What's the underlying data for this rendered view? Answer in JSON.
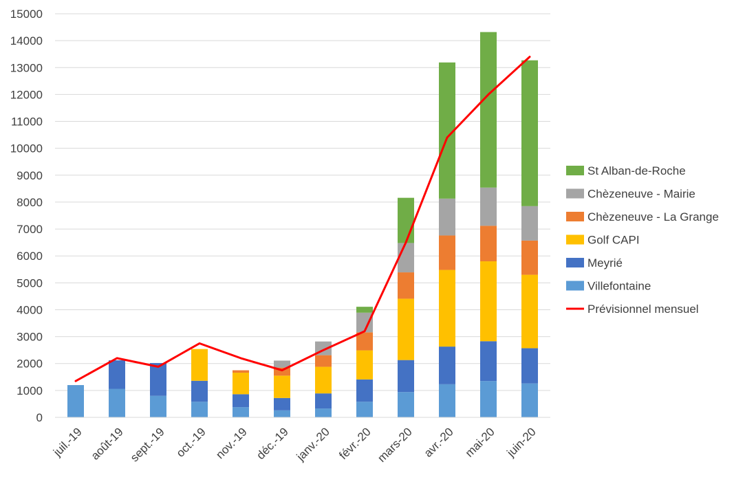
{
  "chart_data": {
    "type": "bar",
    "stacked": true,
    "title": "",
    "xlabel": "",
    "ylabel": "",
    "ylim": [
      0,
      15000
    ],
    "yticks": [
      0,
      1000,
      2000,
      3000,
      4000,
      5000,
      6000,
      7000,
      8000,
      9000,
      10000,
      11000,
      12000,
      13000,
      14000,
      15000
    ],
    "grid": true,
    "legend_position": "right",
    "categories": [
      "juil.-19",
      "août-19",
      "sept.-19",
      "oct.-19",
      "nov.-19",
      "déc.-19",
      "janv.-20",
      "févr.-20",
      "mars-20",
      "avr.-20",
      "mai-20",
      "juin-20"
    ],
    "series": [
      {
        "name": "Villefontaine",
        "color": "#5B9BD5",
        "values": [
          1200,
          1060,
          800,
          580,
          380,
          260,
          330,
          580,
          940,
          1230,
          1350,
          1260
        ]
      },
      {
        "name": "Meyrié",
        "color": "#4472C4",
        "values": [
          0,
          1060,
          1220,
          780,
          480,
          460,
          560,
          830,
          1190,
          1400,
          1480,
          1310
        ]
      },
      {
        "name": "Golf CAPI",
        "color": "#FFC000",
        "values": [
          0,
          0,
          0,
          1180,
          800,
          830,
          990,
          1080,
          2280,
          2850,
          2970,
          2730
        ]
      },
      {
        "name": "Chèzeneuve - La Grange",
        "color": "#ED7D31",
        "values": [
          0,
          0,
          0,
          0,
          90,
          300,
          430,
          670,
          980,
          1280,
          1320,
          1270
        ]
      },
      {
        "name": "Chèzeneuve - Mairie",
        "color": "#A5A5A5",
        "values": [
          0,
          0,
          0,
          0,
          0,
          260,
          510,
          730,
          1090,
          1370,
          1420,
          1280
        ]
      },
      {
        "name": "St Alban-de-Roche",
        "color": "#70AD47",
        "values": [
          0,
          0,
          0,
          0,
          0,
          0,
          0,
          220,
          1680,
          5060,
          5780,
          5420
        ]
      }
    ],
    "line_series": {
      "name": "Prévisionnel mensuel",
      "color": "#FF0000",
      "values": [
        1350,
        2200,
        1880,
        2750,
        2200,
        1750,
        2500,
        3200,
        6500,
        10400,
        12000,
        13400
      ]
    },
    "legend": [
      "St Alban-de-Roche",
      "Chèzeneuve - Mairie",
      "Chèzeneuve - La Grange",
      "Golf CAPI",
      "Meyrié",
      "Villefontaine",
      "Prévisionnel mensuel"
    ]
  }
}
